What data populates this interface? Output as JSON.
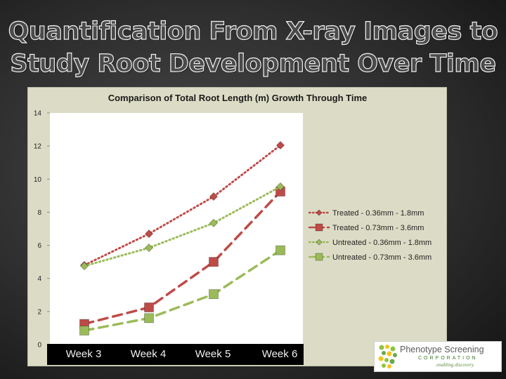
{
  "slide": {
    "title_line1": "Quantification From  X-ray Images to",
    "title_line2": "Study Root Development Over Time"
  },
  "chart_data": {
    "type": "line",
    "title": "Comparison of Total Root Length (m) Growth Through Time",
    "categories": [
      "Week 3",
      "Week 4",
      "Week 5",
      "Week 6"
    ],
    "ylim": [
      0,
      14
    ],
    "yticks": [
      0,
      2,
      4,
      6,
      8,
      10,
      12,
      14
    ],
    "grid": false,
    "legend_position": "right",
    "series": [
      {
        "name": "Treated - 0.36mm - 1.8mm",
        "values": [
          4.8,
          6.7,
          8.95,
          12.05
        ],
        "color": "#be4b48",
        "marker": "diamond",
        "dash": "dotted"
      },
      {
        "name": "Treated - 0.73mm - 3.6mm",
        "values": [
          1.25,
          2.25,
          5.0,
          9.25
        ],
        "color": "#be4b48",
        "marker": "square",
        "dash": "dashed"
      },
      {
        "name": "Untreated - 0.36mm - 1.8mm",
        "values": [
          4.75,
          5.85,
          7.35,
          9.55
        ],
        "color": "#9bbb59",
        "marker": "diamond",
        "dash": "dotted"
      },
      {
        "name": "Untreated - 0.73mm - 3.6mm",
        "values": [
          0.85,
          1.6,
          3.05,
          5.7
        ],
        "color": "#9bbb59",
        "marker": "square",
        "dash": "dashed"
      }
    ]
  },
  "logo": {
    "name": "Phenotype Screening",
    "corporation": "CORPORATION",
    "tagline": "enabling discovery"
  }
}
